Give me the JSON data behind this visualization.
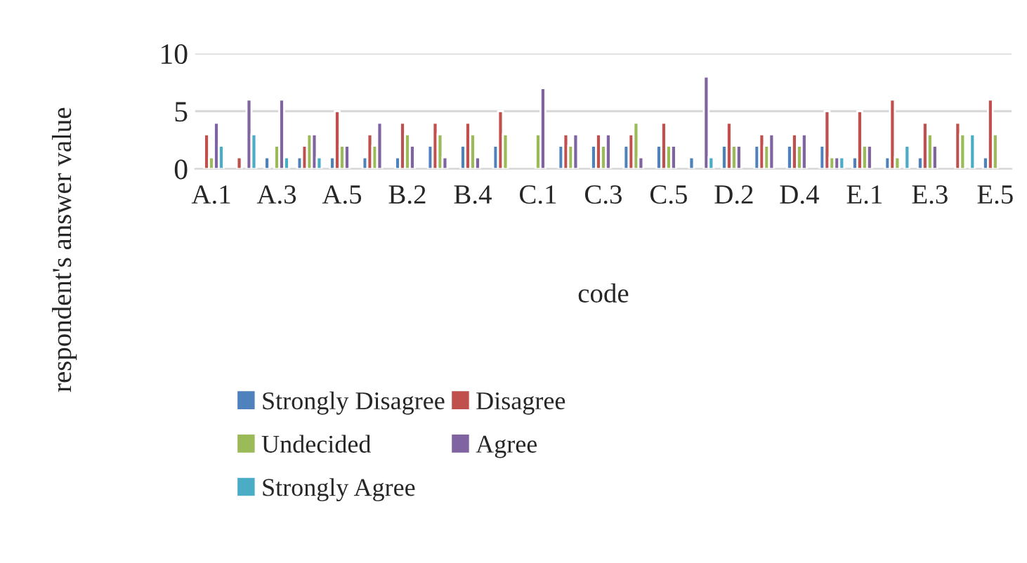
{
  "chart_data": {
    "type": "bar",
    "xlabel": "code",
    "ylabel": "respondent's answer value",
    "categories": [
      "A.1",
      null,
      "A.3",
      null,
      "A.5",
      null,
      "B.2",
      null,
      "B.4",
      null,
      "C.1",
      null,
      "C.3",
      null,
      "C.5",
      null,
      "D.2",
      null,
      "D.4",
      null,
      "E.1",
      null,
      "E.3",
      null,
      "E.5"
    ],
    "series": [
      {
        "name": "Strongly Disagree",
        "color": "#4f81bd",
        "values": [
          null,
          null,
          1,
          1,
          1,
          1,
          1,
          2,
          2,
          2,
          null,
          2,
          2,
          2,
          2,
          1,
          2,
          2,
          2,
          2,
          1,
          1,
          1,
          null,
          1
        ]
      },
      {
        "name": "Disagree",
        "color": "#c0504d",
        "values": [
          3,
          1,
          null,
          2,
          5,
          3,
          4,
          4,
          4,
          5,
          null,
          3,
          3,
          3,
          4,
          null,
          4,
          3,
          3,
          5,
          5,
          6,
          4,
          4,
          6
        ]
      },
      {
        "name": "Undecided",
        "color": "#9bbb59",
        "values": [
          1,
          null,
          2,
          3,
          2,
          2,
          3,
          3,
          3,
          3,
          3,
          2,
          2,
          4,
          2,
          null,
          2,
          2,
          2,
          1,
          2,
          1,
          3,
          3,
          3
        ]
      },
      {
        "name": "Agree",
        "color": "#8064a2",
        "values": [
          4,
          6,
          6,
          3,
          2,
          4,
          2,
          1,
          1,
          null,
          7,
          3,
          3,
          1,
          2,
          8,
          2,
          3,
          3,
          1,
          2,
          null,
          2,
          null,
          null
        ]
      },
      {
        "name": "Strongly Agree",
        "color": "#4bacc6",
        "values": [
          2,
          3,
          1,
          1,
          null,
          null,
          null,
          null,
          null,
          null,
          null,
          null,
          null,
          null,
          null,
          1,
          null,
          null,
          null,
          1,
          null,
          2,
          null,
          3,
          null
        ]
      }
    ],
    "ylim": [
      0,
      10
    ],
    "yticks": [
      0,
      5,
      10
    ],
    "grid": "y",
    "legend": "bottom"
  }
}
